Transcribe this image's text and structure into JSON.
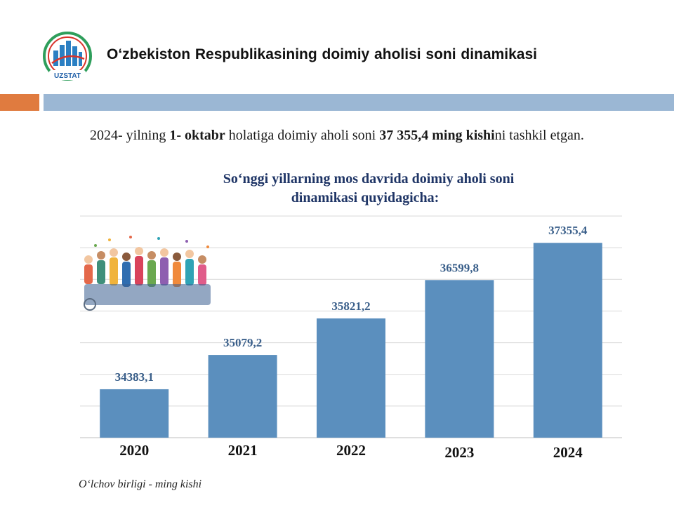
{
  "header": {
    "logo_text": "UZSTAT",
    "title": "O‘zbekiston Respublikasining  doimiy aholisi soni dinamikasi"
  },
  "intro": {
    "p1": "2024- yilning ",
    "b1": "1- oktabr",
    "p2": " holatiga doimiy aholi soni ",
    "b2": "37 355,4 ming kishi",
    "p3": "ni tashkil etgan."
  },
  "chart_data": {
    "type": "bar",
    "title_line1": "So‘nggi yillarning mos davrida doimiy aholi soni",
    "title_line2": "dinamikasi quyidagicha:",
    "categories": [
      "2020",
      "2021",
      "2022",
      "2023",
      "2024"
    ],
    "values": [
      34383.1,
      35079.2,
      35821.2,
      36599.8,
      37355.4
    ],
    "value_labels": [
      "34383,1",
      "35079,2",
      "35821,2",
      "36599,8",
      "37355,4"
    ],
    "bar_color": "#5b8fbe",
    "label_color": "#3a5f8a",
    "grid": true
  },
  "footnote": "O‘lchov birligi - ming kishi"
}
